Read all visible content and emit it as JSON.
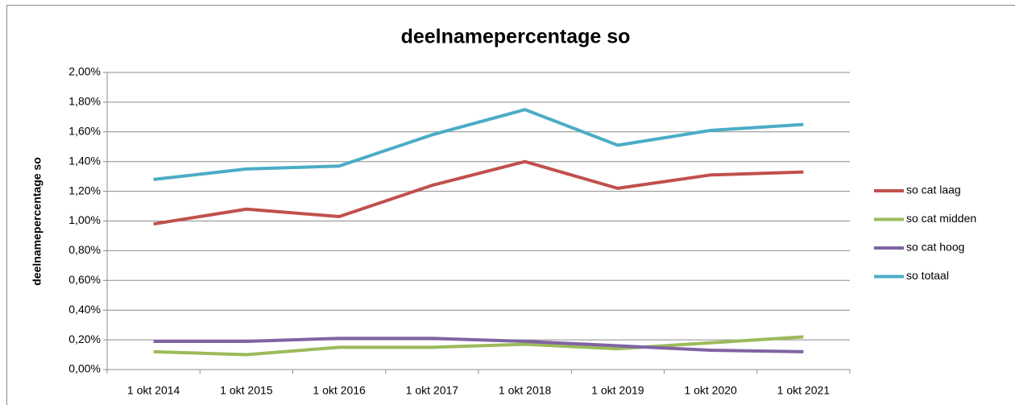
{
  "chart_data": {
    "type": "line",
    "title": "deelnamepercentage so",
    "y_label": "deelnamepercentage so",
    "categories": [
      "1 okt 2014",
      "1 okt 2015",
      "1 okt 2016",
      "1 okt 2017",
      "1 okt 2018",
      "1 okt 2019",
      "1 okt 2020",
      "1 okt 2021"
    ],
    "series": [
      {
        "name": "so cat laag",
        "color": "#c0504d",
        "values": [
          0.98,
          1.08,
          1.03,
          1.24,
          1.4,
          1.22,
          1.31,
          1.33
        ]
      },
      {
        "name": "so cat midden",
        "color": "#9bbb59",
        "values": [
          0.12,
          0.1,
          0.15,
          0.15,
          0.17,
          0.14,
          0.18,
          0.22
        ]
      },
      {
        "name": "so cat hoog",
        "color": "#8064a2",
        "values": [
          0.19,
          0.19,
          0.21,
          0.21,
          0.19,
          0.16,
          0.13,
          0.12
        ]
      },
      {
        "name": "so totaal",
        "color": "#4bacc6",
        "values": [
          1.28,
          1.35,
          1.37,
          1.58,
          1.75,
          1.51,
          1.61,
          1.65
        ]
      }
    ],
    "ylim": [
      0,
      2
    ],
    "yticks": [
      {
        "value": 0,
        "label": "0,00%"
      },
      {
        "value": 0.2,
        "label": "0,20%"
      },
      {
        "value": 0.4,
        "label": "0,40%"
      },
      {
        "value": 0.6,
        "label": "0,60%"
      },
      {
        "value": 0.8,
        "label": "0,80%"
      },
      {
        "value": 1,
        "label": "1,00%"
      },
      {
        "value": 1.2,
        "label": "1,20%"
      },
      {
        "value": 1.4,
        "label": "1,40%"
      },
      {
        "value": 1.6,
        "label": "1,60%"
      },
      {
        "value": 1.8,
        "label": "1,80%"
      },
      {
        "value": 2,
        "label": "2,00%"
      }
    ],
    "grid": true,
    "legend": "right"
  }
}
